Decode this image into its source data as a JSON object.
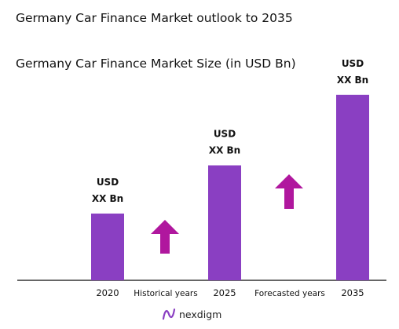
{
  "header": {
    "title": "Germany Car Finance Market outlook to 2035"
  },
  "chart_data": {
    "type": "bar",
    "title": "Germany Car Finance Market Size (in USD Bn)",
    "xlabel": "",
    "ylabel": "",
    "categories": [
      "2020",
      "2025",
      "2035"
    ],
    "values": [
      0.36,
      0.62,
      1.0
    ],
    "value_labels": [
      [
        "USD",
        "XX Bn"
      ],
      [
        "USD",
        "XX Bn"
      ],
      [
        "USD",
        "XX Bn"
      ]
    ],
    "ylim": [
      0,
      1.05
    ],
    "grid": false,
    "legend": "none",
    "period_labels": [
      "Historical years",
      "Forecasted years"
    ],
    "bar_color": "#8a3fc2",
    "arrow_color": "#b0179e"
  },
  "footer": {
    "brand": "nexdigm",
    "logo_icon": "nexdigm-logo-icon"
  }
}
